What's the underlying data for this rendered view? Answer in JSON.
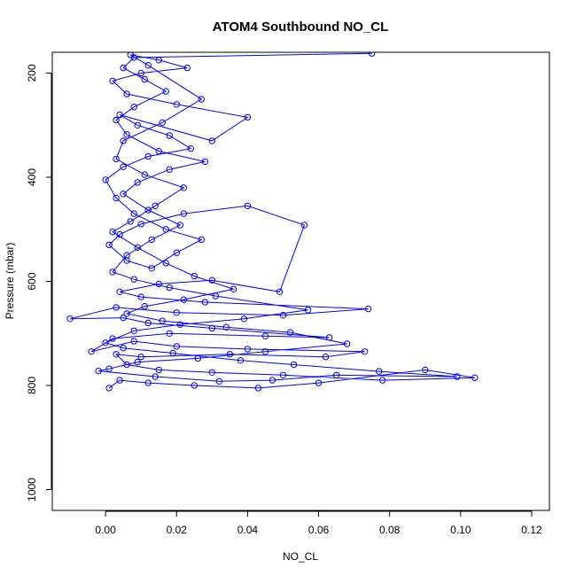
{
  "chart_data": {
    "type": "scatter",
    "title": "ATOM4 Southbound NO_CL",
    "xlabel": "NO_CL",
    "ylabel": "Pressure (mbar)",
    "xlim": [
      -0.015,
      0.125
    ],
    "ylim": [
      1040,
      160
    ],
    "y_reversed": true,
    "x_ticks": [
      0.0,
      0.02,
      0.04,
      0.06,
      0.08,
      0.1,
      0.12
    ],
    "x_tick_labels": [
      "0.00",
      "0.02",
      "0.04",
      "0.06",
      "0.08",
      "0.10",
      "0.12"
    ],
    "y_ticks": [
      200,
      400,
      600,
      800,
      1000
    ],
    "y_tick_labels": [
      "200",
      "400",
      "600",
      "800",
      "1000"
    ],
    "series": [
      {
        "color": "#0000ff",
        "marker": "open-circle",
        "line": true,
        "points": [
          {
            "x": 0.001,
            "y": 805
          },
          {
            "x": 0.004,
            "y": 790
          },
          {
            "x": 0.012,
            "y": 795
          },
          {
            "x": 0.025,
            "y": 800
          },
          {
            "x": 0.043,
            "y": 805
          },
          {
            "x": 0.06,
            "y": 795
          },
          {
            "x": 0.09,
            "y": 770
          },
          {
            "x": 0.104,
            "y": 785
          },
          {
            "x": 0.078,
            "y": 790
          },
          {
            "x": 0.05,
            "y": 780
          },
          {
            "x": 0.03,
            "y": 775
          },
          {
            "x": 0.015,
            "y": 770
          },
          {
            "x": 0.006,
            "y": 760
          },
          {
            "x": 0.003,
            "y": 740
          },
          {
            "x": 0.01,
            "y": 745
          },
          {
            "x": 0.035,
            "y": 740
          },
          {
            "x": 0.062,
            "y": 745
          },
          {
            "x": 0.073,
            "y": 735
          },
          {
            "x": 0.04,
            "y": 730
          },
          {
            "x": 0.02,
            "y": 725
          },
          {
            "x": 0.008,
            "y": 715
          },
          {
            "x": -0.004,
            "y": 735
          },
          {
            "x": 0.002,
            "y": 710
          },
          {
            "x": 0.018,
            "y": 700
          },
          {
            "x": 0.045,
            "y": 705
          },
          {
            "x": 0.063,
            "y": 708
          },
          {
            "x": 0.03,
            "y": 690
          },
          {
            "x": 0.012,
            "y": 680
          },
          {
            "x": 0.005,
            "y": 670
          },
          {
            "x": -0.01,
            "y": 672
          },
          {
            "x": 0.003,
            "y": 650
          },
          {
            "x": 0.02,
            "y": 660
          },
          {
            "x": 0.05,
            "y": 665
          },
          {
            "x": 0.074,
            "y": 653
          },
          {
            "x": 0.028,
            "y": 640
          },
          {
            "x": 0.01,
            "y": 630
          },
          {
            "x": 0.004,
            "y": 620
          },
          {
            "x": 0.015,
            "y": 605
          },
          {
            "x": 0.03,
            "y": 598
          },
          {
            "x": 0.049,
            "y": 620
          },
          {
            "x": 0.056,
            "y": 492
          },
          {
            "x": 0.04,
            "y": 455
          },
          {
            "x": 0.022,
            "y": 470
          },
          {
            "x": 0.01,
            "y": 490
          },
          {
            "x": 0.004,
            "y": 510
          },
          {
            "x": 0.001,
            "y": 530
          },
          {
            "x": 0.006,
            "y": 560
          },
          {
            "x": 0.013,
            "y": 575
          },
          {
            "x": 0.02,
            "y": 545
          },
          {
            "x": 0.027,
            "y": 520
          },
          {
            "x": 0.017,
            "y": 500
          },
          {
            "x": 0.008,
            "y": 470
          },
          {
            "x": 0.003,
            "y": 440
          },
          {
            "x": 0.0,
            "y": 405
          },
          {
            "x": 0.005,
            "y": 380
          },
          {
            "x": 0.012,
            "y": 360
          },
          {
            "x": 0.024,
            "y": 345
          },
          {
            "x": 0.018,
            "y": 320
          },
          {
            "x": 0.009,
            "y": 300
          },
          {
            "x": 0.004,
            "y": 280
          },
          {
            "x": 0.03,
            "y": 330
          },
          {
            "x": 0.04,
            "y": 285
          },
          {
            "x": 0.02,
            "y": 260
          },
          {
            "x": 0.006,
            "y": 240
          },
          {
            "x": 0.002,
            "y": 215
          },
          {
            "x": 0.01,
            "y": 200
          },
          {
            "x": 0.023,
            "y": 190
          },
          {
            "x": 0.015,
            "y": 175
          },
          {
            "x": 0.007,
            "y": 165
          },
          {
            "x": 0.012,
            "y": 185
          },
          {
            "x": 0.027,
            "y": 250
          },
          {
            "x": 0.016,
            "y": 295
          },
          {
            "x": 0.005,
            "y": 330
          },
          {
            "x": 0.003,
            "y": 365
          },
          {
            "x": 0.011,
            "y": 395
          },
          {
            "x": 0.022,
            "y": 420
          },
          {
            "x": 0.014,
            "y": 455
          },
          {
            "x": 0.007,
            "y": 485
          },
          {
            "x": 0.002,
            "y": 505
          },
          {
            "x": 0.009,
            "y": 535
          },
          {
            "x": 0.017,
            "y": 565
          },
          {
            "x": 0.025,
            "y": 590
          },
          {
            "x": 0.036,
            "y": 615
          },
          {
            "x": 0.022,
            "y": 635
          },
          {
            "x": 0.011,
            "y": 648
          },
          {
            "x": 0.006,
            "y": 662
          },
          {
            "x": 0.016,
            "y": 676
          },
          {
            "x": 0.034,
            "y": 688
          },
          {
            "x": 0.052,
            "y": 698
          },
          {
            "x": 0.068,
            "y": 720
          },
          {
            "x": 0.045,
            "y": 735
          },
          {
            "x": 0.026,
            "y": 748
          },
          {
            "x": 0.009,
            "y": 755
          },
          {
            "x": 0.001,
            "y": 768
          },
          {
            "x": -0.002,
            "y": 772
          },
          {
            "x": 0.014,
            "y": 783
          },
          {
            "x": 0.032,
            "y": 792
          },
          {
            "x": 0.047,
            "y": 790
          },
          {
            "x": 0.065,
            "y": 780
          },
          {
            "x": 0.099,
            "y": 783
          },
          {
            "x": 0.077,
            "y": 773
          },
          {
            "x": 0.053,
            "y": 760
          },
          {
            "x": 0.038,
            "y": 752
          },
          {
            "x": 0.019,
            "y": 738
          },
          {
            "x": 0.005,
            "y": 728
          },
          {
            "x": 0.0,
            "y": 718
          },
          {
            "x": 0.008,
            "y": 695
          },
          {
            "x": 0.021,
            "y": 683
          },
          {
            "x": 0.039,
            "y": 672
          },
          {
            "x": 0.057,
            "y": 655
          },
          {
            "x": 0.031,
            "y": 628
          },
          {
            "x": 0.018,
            "y": 612
          },
          {
            "x": 0.008,
            "y": 596
          },
          {
            "x": 0.002,
            "y": 582
          },
          {
            "x": 0.006,
            "y": 550
          },
          {
            "x": 0.013,
            "y": 520
          },
          {
            "x": 0.021,
            "y": 492
          },
          {
            "x": 0.012,
            "y": 463
          },
          {
            "x": 0.005,
            "y": 432
          },
          {
            "x": 0.009,
            "y": 410
          },
          {
            "x": 0.018,
            "y": 385
          },
          {
            "x": 0.028,
            "y": 370
          },
          {
            "x": 0.015,
            "y": 350
          },
          {
            "x": 0.006,
            "y": 318
          },
          {
            "x": 0.003,
            "y": 290
          },
          {
            "x": 0.008,
            "y": 265
          },
          {
            "x": 0.017,
            "y": 235
          },
          {
            "x": 0.011,
            "y": 212
          },
          {
            "x": 0.005,
            "y": 190
          },
          {
            "x": 0.008,
            "y": 170
          },
          {
            "x": 0.075,
            "y": 162
          }
        ]
      }
    ]
  }
}
